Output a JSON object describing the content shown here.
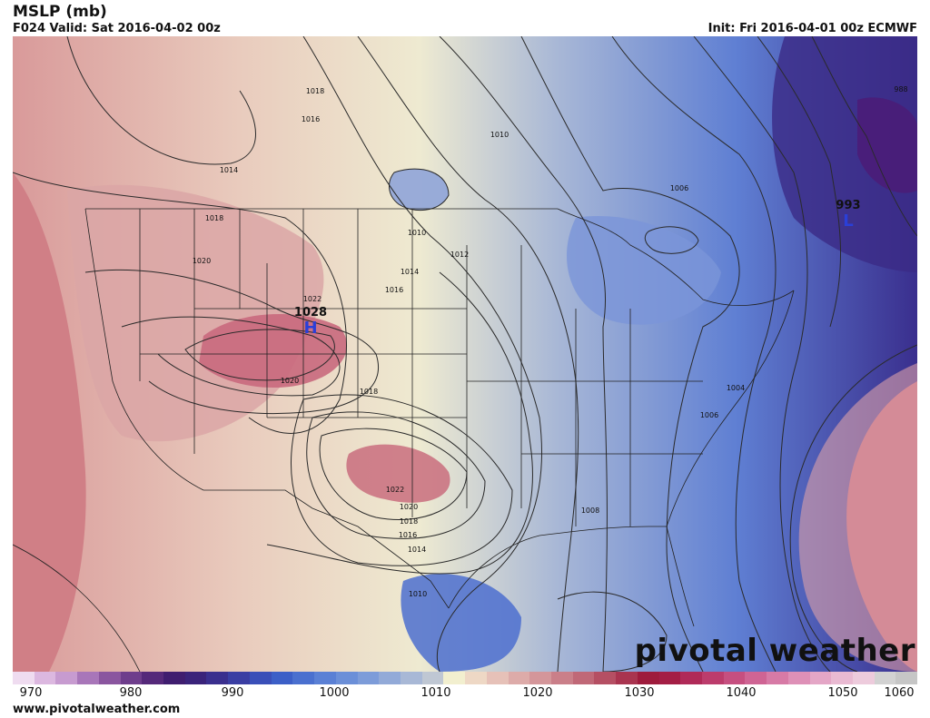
{
  "header": {
    "title": "MSLP (mb)",
    "valid": "F024 Valid: Sat 2016-04-02 00z",
    "init": "Init: Fri 2016-04-01 00z ECMWF"
  },
  "footer": {
    "website": "www.pivotalweather.com",
    "brand": "pivotal weather"
  },
  "colorbar": {
    "ticks": [
      "970",
      "980",
      "990",
      "1000",
      "1010",
      "1020",
      "1030",
      "1040",
      "1050",
      "1060"
    ],
    "colors": [
      "#efdcf0",
      "#dcb8e0",
      "#c79bd0",
      "#a876b9",
      "#8a559f",
      "#6e3d8c",
      "#55297a",
      "#3f1d6f",
      "#3a237a",
      "#3a2f8e",
      "#3a3ea3",
      "#3a4fb8",
      "#3c5fc7",
      "#4a70cf",
      "#5a80d5",
      "#6b8fd8",
      "#7d9cd9",
      "#92aad8",
      "#a8b8d6",
      "#bfc7d3",
      "#f2efcf",
      "#eed8c5",
      "#e6c1b8",
      "#ddaba9",
      "#d4969a",
      "#ca7f89",
      "#c06877",
      "#b54f63",
      "#a9344f",
      "#9e1b3c",
      "#a41e45",
      "#b02a58",
      "#bc3c6c",
      "#c64f80",
      "#cf6494",
      "#d77aa6",
      "#de90b7",
      "#e4a6c6",
      "#e9bad2",
      "#edcbdc",
      "#d2d2d2",
      "#c6c6c6"
    ]
  },
  "contour_labels": [
    {
      "text": "1018"
    },
    {
      "text": "1016"
    },
    {
      "text": "1014"
    },
    {
      "text": "1018"
    },
    {
      "text": "1020"
    },
    {
      "text": "1022"
    },
    {
      "text": "1020"
    },
    {
      "text": "1018"
    },
    {
      "text": "1010"
    },
    {
      "text": "1010"
    },
    {
      "text": "1012"
    },
    {
      "text": "1014"
    },
    {
      "text": "1016"
    },
    {
      "text": "1006"
    },
    {
      "text": "1004"
    },
    {
      "text": "1006"
    },
    {
      "text": "1022"
    },
    {
      "text": "1020"
    },
    {
      "text": "1018"
    },
    {
      "text": "1016"
    },
    {
      "text": "1014"
    },
    {
      "text": "1010"
    },
    {
      "text": "1008"
    },
    {
      "text": "988"
    }
  ],
  "pressure_centers": [
    {
      "type": "high",
      "letter": "H",
      "value": "1028"
    },
    {
      "type": "low",
      "letter": "L",
      "value": "993"
    }
  ]
}
